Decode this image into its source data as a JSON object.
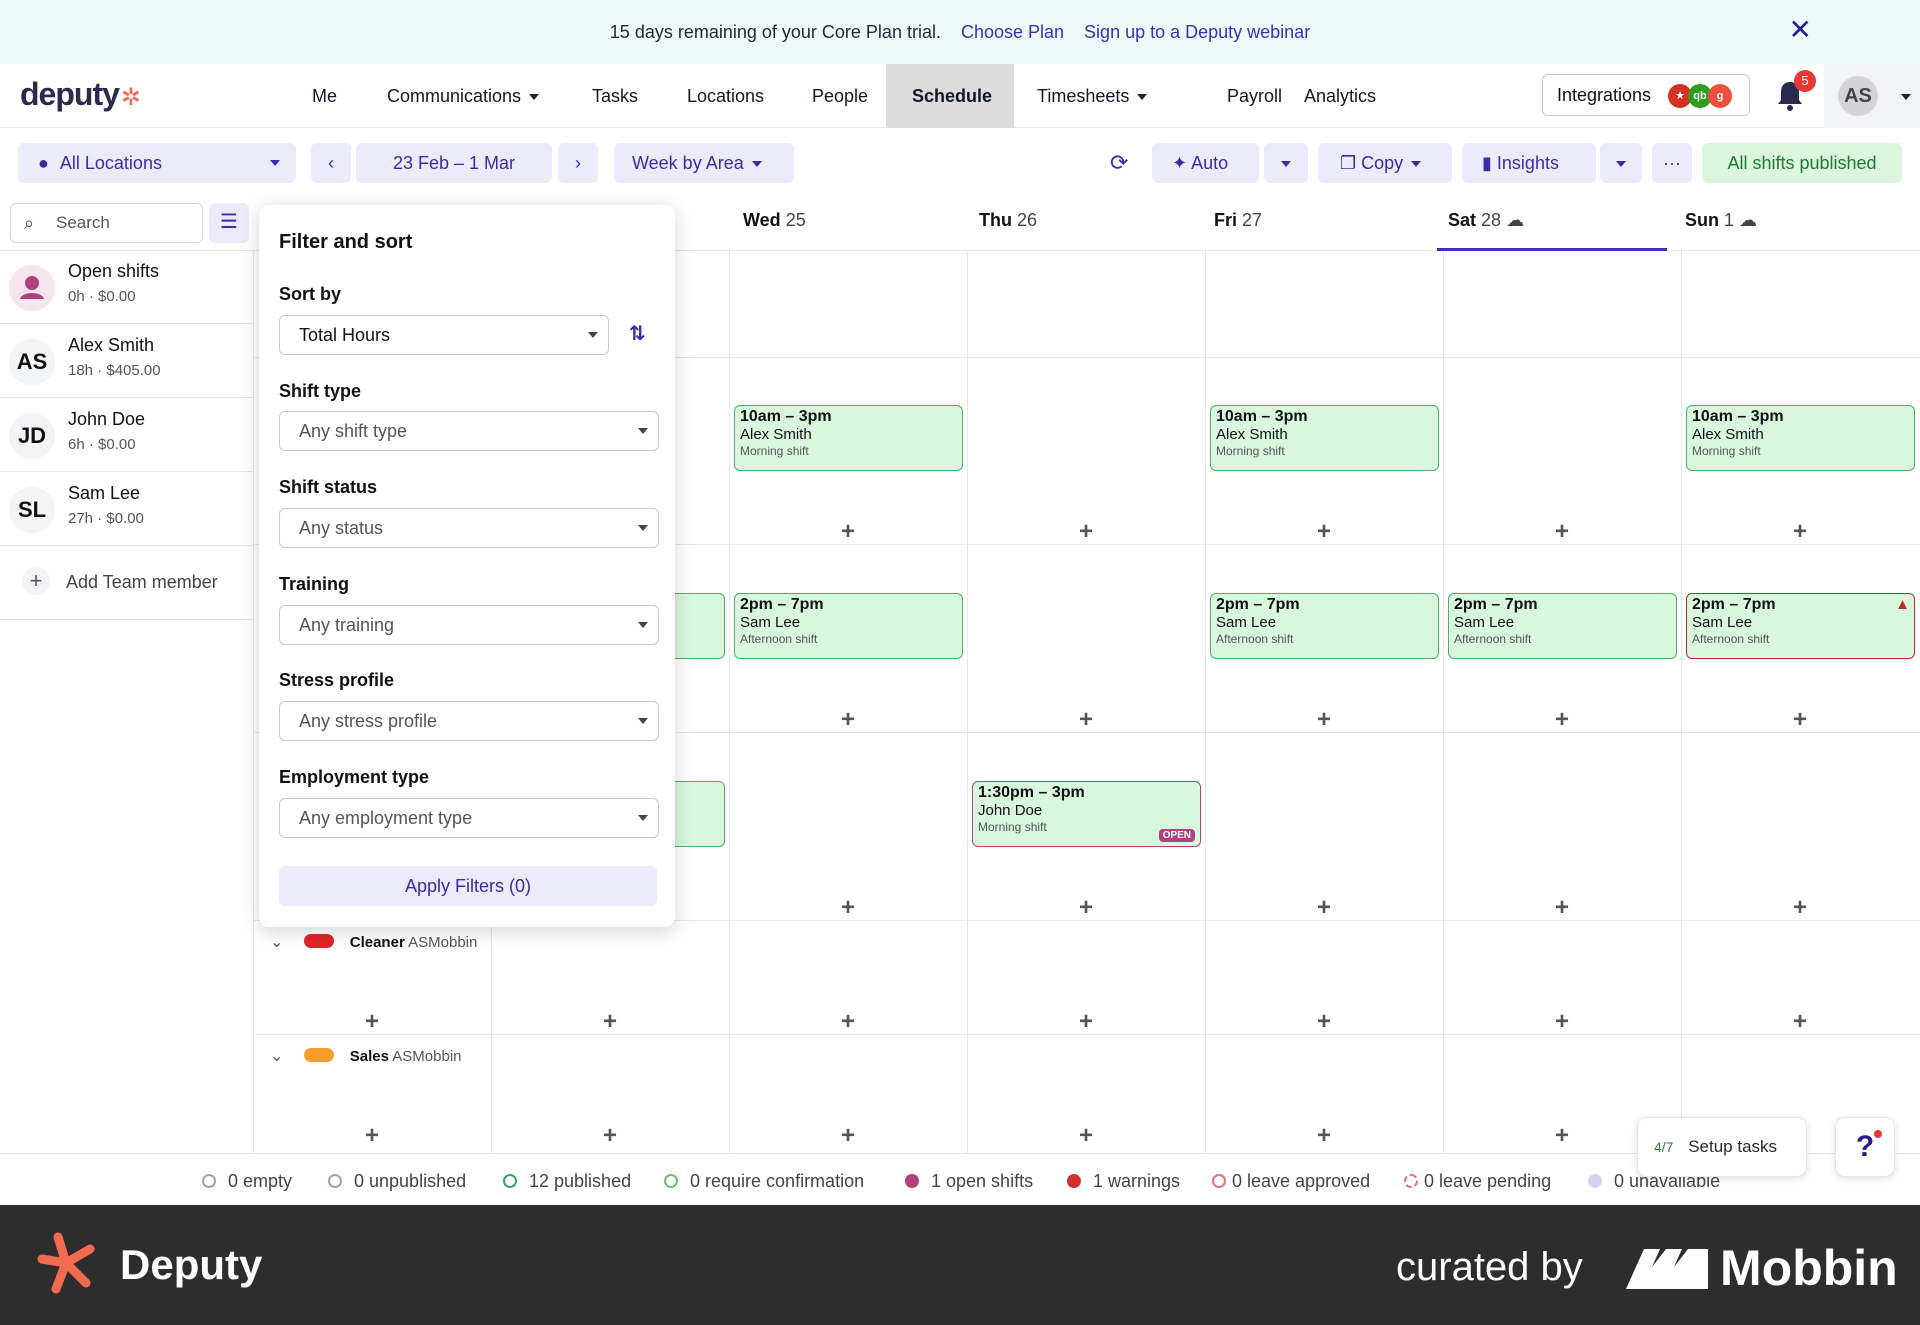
{
  "banner": {
    "text": "15 days remaining of your Core Plan trial.",
    "choose_plan": "Choose Plan",
    "webinar": "Sign up to a Deputy webinar"
  },
  "nav": {
    "logo": "deputy",
    "items": [
      "Me",
      "Communications",
      "Tasks",
      "Locations",
      "People",
      "Schedule",
      "Timesheets",
      "Payroll",
      "Analytics"
    ],
    "active": "Schedule",
    "integrations": "Integrations",
    "notif_count": "5",
    "user_initials": "AS"
  },
  "toolbar": {
    "locations": "All Locations",
    "date_range": "23 Feb – 1 Mar",
    "view": "Week by Area",
    "auto": "Auto",
    "copy": "Copy",
    "insights": "Insights",
    "published": "All shifts published"
  },
  "sidebar": {
    "search_placeholder": "Search",
    "people": [
      {
        "initials": "",
        "name": "Open shifts",
        "meta": "0h · $0.00"
      },
      {
        "initials": "AS",
        "name": "Alex Smith",
        "meta": "18h · $405.00"
      },
      {
        "initials": "JD",
        "name": "John Doe",
        "meta": "6h · $0.00"
      },
      {
        "initials": "SL",
        "name": "Sam Lee",
        "meta": "27h · $0.00"
      }
    ],
    "add_member": "Add Team member"
  },
  "days": [
    {
      "d": "Wed",
      "n": "25"
    },
    {
      "d": "Thu",
      "n": "26"
    },
    {
      "d": "Fri",
      "n": "27"
    },
    {
      "d": "Sat",
      "n": "28"
    },
    {
      "d": "Sun",
      "n": "1"
    }
  ],
  "shifts": {
    "morning_time": "10am – 3pm",
    "morning_name": "Alex Smith",
    "morning_desc": "Morning shift",
    "afternoon_time": "2pm – 7pm",
    "afternoon_name": "Sam Lee",
    "afternoon_desc": "Afternoon shift",
    "open_time": "1:30pm – 3pm",
    "open_name": "John Doe",
    "open_desc": "Morning shift",
    "open_badge": "OPEN"
  },
  "groups": [
    {
      "name": "Cleaner",
      "loc": "ASMobbin",
      "color": "#e02424"
    },
    {
      "name": "Sales",
      "loc": "ASMobbin",
      "color": "#f59e2b"
    }
  ],
  "filter_panel": {
    "title": "Filter and sort",
    "sort_by_label": "Sort by",
    "sort_by_value": "Total Hours",
    "shift_type_label": "Shift type",
    "shift_type_value": "Any shift type",
    "shift_status_label": "Shift status",
    "shift_status_value": "Any status",
    "training_label": "Training",
    "training_value": "Any training",
    "stress_label": "Stress profile",
    "stress_value": "Any stress profile",
    "employment_label": "Employment type",
    "employment_value": "Any employment type",
    "apply": "Apply Filters (0)"
  },
  "statusbar": [
    {
      "label": "0 empty",
      "color": "#9ca3af"
    },
    {
      "label": "0 unpublished",
      "color": "#9ca3af"
    },
    {
      "label": "12 published",
      "color": "#34a853"
    },
    {
      "label": "0 require confirmation",
      "color": "#6cc36a"
    },
    {
      "label": "1 open shifts",
      "color": "#b0417d"
    },
    {
      "label": "1 warnings",
      "color": "#d32f2f"
    },
    {
      "label": "0 leave approved",
      "color": "#e57373"
    },
    {
      "label": "0 leave pending",
      "color": "#e57373"
    },
    {
      "label": "0 unavailable",
      "color": "#d9d1f2"
    }
  ],
  "setup": {
    "count": "4/7",
    "label": "Setup tasks"
  },
  "footer": {
    "brand": "Deputy",
    "curated": "curated by",
    "mobbin": "Mobbin"
  }
}
